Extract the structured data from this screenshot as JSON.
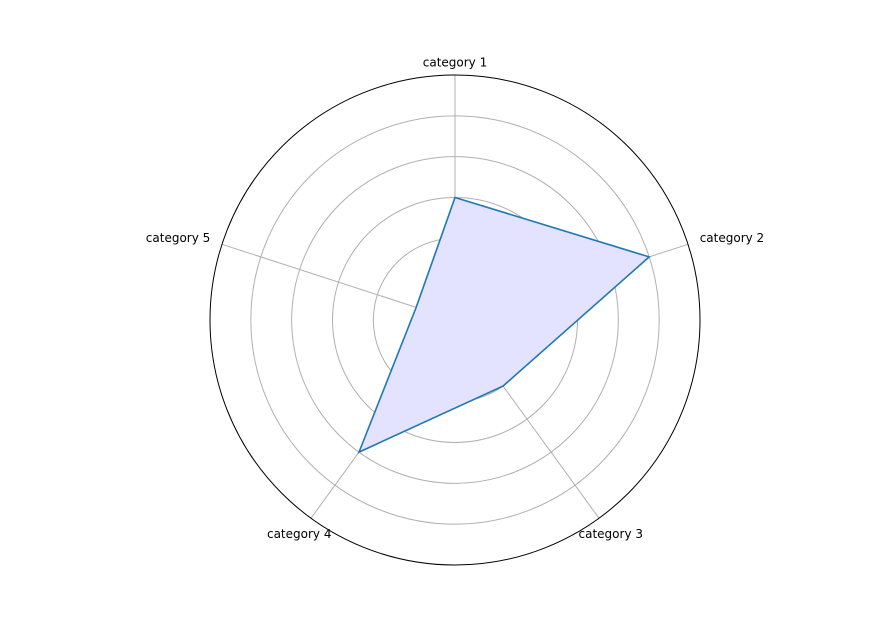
{
  "chart_data": {
    "type": "radar",
    "categories": [
      "category 1",
      "category 2",
      "category 3",
      "category 4",
      "category 5"
    ],
    "series": [
      {
        "values": [
          3,
          5,
          2,
          4,
          1
        ]
      }
    ],
    "rlim": [
      0,
      6
    ],
    "rgrid": [
      1,
      2,
      3,
      4,
      5
    ],
    "grid": true,
    "colors": {
      "line": "#1f77b4",
      "fill": "#e3e3ff",
      "grid": "#b0b0b0",
      "outer": "#000000"
    }
  }
}
